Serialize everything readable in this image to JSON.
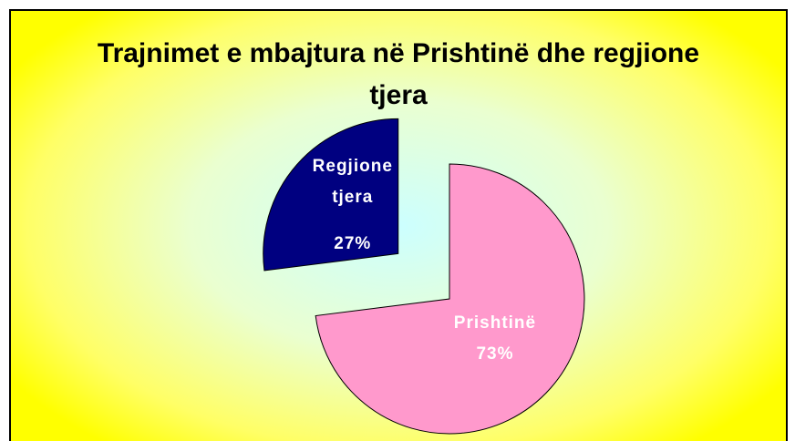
{
  "chart_data": {
    "type": "pie",
    "title": "Trajnimet e mbajtura në Prishtinë dhe regjione tjera",
    "categories": [
      "Prishtinë",
      "Regjione tjera"
    ],
    "values": [
      73,
      27
    ],
    "value_labels": [
      "73%",
      "27%"
    ],
    "colors": [
      "#ff99cc",
      "#000080"
    ]
  }
}
